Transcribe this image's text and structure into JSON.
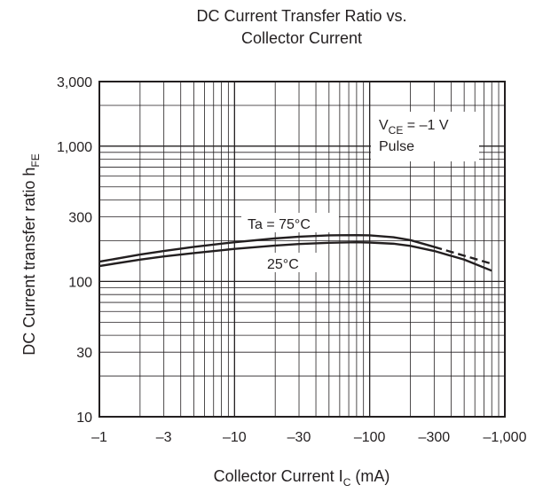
{
  "chart_data": {
    "type": "line",
    "title_line1": "DC Current Transfer Ratio vs.",
    "title_line2": "Collector Current",
    "xlabel_main": "Collector Current  I",
    "xlabel_sub": "C",
    "xlabel_unit": "  (mA)",
    "ylabel_main": "DC Current transfer ratio  h",
    "ylabel_sub": "FE",
    "x_scale": "log",
    "y_scale": "log",
    "x_range": [
      1,
      1000
    ],
    "y_range": [
      10,
      3000
    ],
    "x_ticks": [
      {
        "value": 1,
        "label": "–1"
      },
      {
        "value": 3,
        "label": "–3"
      },
      {
        "value": 10,
        "label": "–10"
      },
      {
        "value": 30,
        "label": "–30"
      },
      {
        "value": 100,
        "label": "–100"
      },
      {
        "value": 300,
        "label": "–300"
      },
      {
        "value": 1000,
        "label": "–1,000"
      }
    ],
    "y_ticks": [
      {
        "value": 10,
        "label": "10"
      },
      {
        "value": 30,
        "label": "30"
      },
      {
        "value": 100,
        "label": "100"
      },
      {
        "value": 300,
        "label": "300"
      },
      {
        "value": 1000,
        "label": "1,000"
      },
      {
        "value": 3000,
        "label": "3,000"
      }
    ],
    "grid": true,
    "conditions": {
      "vce_main": "V",
      "vce_sub": "CE",
      "vce_value": " = –1 V",
      "pulse": "Pulse"
    },
    "series": [
      {
        "name": "Ta = 75°C",
        "x": [
          1,
          2,
          3,
          5,
          10,
          20,
          30,
          50,
          80,
          100,
          150,
          200,
          300
        ],
        "y": [
          140,
          158,
          168,
          180,
          195,
          208,
          214,
          219,
          220,
          219,
          212,
          202,
          180
        ],
        "dashed_x": [
          300,
          500,
          800
        ],
        "dashed_y": [
          180,
          155,
          135
        ]
      },
      {
        "name": "25°C",
        "x": [
          1,
          2,
          3,
          5,
          10,
          20,
          30,
          50,
          80,
          100,
          150,
          200,
          300,
          500,
          800
        ],
        "y": [
          130,
          145,
          153,
          162,
          174,
          184,
          189,
          193,
          195,
          194,
          190,
          183,
          168,
          145,
          120
        ]
      }
    ]
  }
}
